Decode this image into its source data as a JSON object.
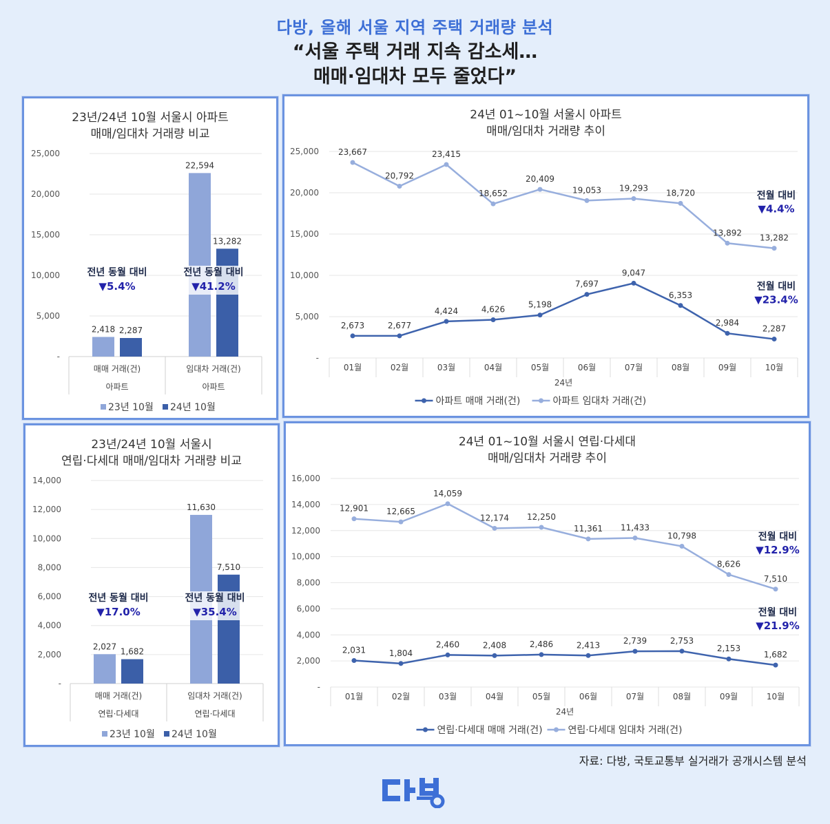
{
  "header": {
    "subtitle": "다방, 올해 서울 지역 주택 거래량 분석",
    "title_line1": "“서울 주택 거래 지속 감소세…",
    "title_line2": "매매·임대차 모두 줄었다”"
  },
  "footer": {
    "source": "자료: 다방, 국토교통부 실거래가 공개시스템 분석",
    "logo_text": "다방"
  },
  "colors": {
    "series_23": "#8fa6d9",
    "series_24": "#3b5fa8",
    "line_rent": "#97aedd",
    "line_sale": "#3e63ad",
    "highlight_text": "#2222aa",
    "accent": "#3d6fd6"
  },
  "chart_data": [
    {
      "type": "bar",
      "title_line1": "23년/24년 10월 서울시 아파트",
      "title_line2": "매매/임대차 거래량 비교",
      "categories": [
        "매매 거래(건)",
        "임대차 거래(건)"
      ],
      "group_label": "아파트",
      "series": [
        {
          "name": "23년 10월",
          "values": [
            2418,
            22594
          ]
        },
        {
          "name": "24년 10월",
          "values": [
            2287,
            13282
          ]
        }
      ],
      "data_labels": [
        [
          "2,418",
          "2,287"
        ],
        [
          "22,594",
          "13,282"
        ]
      ],
      "yticks": [
        "-",
        "5,000",
        "10,000",
        "15,000",
        "20,000",
        "25,000"
      ],
      "ylim": [
        0,
        25000
      ],
      "annotations": [
        {
          "label": "전년 동월 대비",
          "value": "▼5.4%"
        },
        {
          "label": "전년 동월 대비",
          "value": "▼41.2%"
        }
      ],
      "legend": [
        "23년 10월",
        "24년 10월"
      ]
    },
    {
      "type": "line",
      "title_line1": "24년 01~10월 서울시 아파트",
      "title_line2": "매매/임대차 거래량 추이",
      "x": [
        "01월",
        "02월",
        "03월",
        "04월",
        "05월",
        "06월",
        "07월",
        "08월",
        "09월",
        "10월"
      ],
      "xlabel": "24년",
      "series": [
        {
          "name": "아파트 매매 거래(건)",
          "values": [
            2673,
            2677,
            4424,
            4626,
            5198,
            7697,
            9047,
            6353,
            2984,
            2287
          ],
          "labels": [
            "2,673",
            "2,677",
            "4,424",
            "4,626",
            "5,198",
            "7,697",
            "9,047",
            "6,353",
            "2,984",
            "2,287"
          ]
        },
        {
          "name": "아파트 임대차 거래(건)",
          "values": [
            23667,
            20792,
            23415,
            18652,
            20409,
            19053,
            19293,
            18720,
            13892,
            13282
          ],
          "labels": [
            "23,667",
            "20,792",
            "23,415",
            "18,652",
            "20,409",
            "19,053",
            "19,293",
            "18,720",
            "13,892",
            "13,282"
          ]
        }
      ],
      "yticks": [
        "-",
        "5,000",
        "10,000",
        "15,000",
        "20,000",
        "25,000"
      ],
      "ylim": [
        0,
        25000
      ],
      "annotations": [
        {
          "label": "전월 대비",
          "value": "▼4.4%"
        },
        {
          "label": "전월 대비",
          "value": "▼23.4%"
        }
      ]
    },
    {
      "type": "bar",
      "title_line1": "23년/24년 10월 서울시",
      "title_line2": "연립·다세대 매매/임대차 거래량 비교",
      "categories": [
        "매매 거래(건)",
        "임대차 거래(건)"
      ],
      "group_label": "연립·다세대",
      "series": [
        {
          "name": "23년 10월",
          "values": [
            2027,
            11630
          ]
        },
        {
          "name": "24년 10월",
          "values": [
            1682,
            7510
          ]
        }
      ],
      "data_labels": [
        [
          "2,027",
          "1,682"
        ],
        [
          "11,630",
          "7,510"
        ]
      ],
      "yticks": [
        "-",
        "2,000",
        "4,000",
        "6,000",
        "8,000",
        "10,000",
        "12,000",
        "14,000"
      ],
      "ylim": [
        0,
        14000
      ],
      "annotations": [
        {
          "label": "전년 동월 대비",
          "value": "▼17.0%"
        },
        {
          "label": "전년 동월 대비",
          "value": "▼35.4%"
        }
      ],
      "legend": [
        "23년 10월",
        "24년 10월"
      ]
    },
    {
      "type": "line",
      "title_line1": "24년 01~10월 서울시 연립·다세대",
      "title_line2": "매매/임대차 거래량 추이",
      "x": [
        "01월",
        "02월",
        "03월",
        "04월",
        "05월",
        "06월",
        "07월",
        "08월",
        "09월",
        "10월"
      ],
      "xlabel": "24년",
      "series": [
        {
          "name": "연립·다세대 매매 거래(건)",
          "values": [
            2031,
            1804,
            2460,
            2408,
            2486,
            2413,
            2739,
            2753,
            2153,
            1682
          ],
          "labels": [
            "2,031",
            "1,804",
            "2,460",
            "2,408",
            "2,486",
            "2,413",
            "2,739",
            "2,753",
            "2,153",
            "1,682"
          ]
        },
        {
          "name": "연립·다세대 임대차 거래(건)",
          "values": [
            12901,
            12665,
            14059,
            12174,
            12250,
            11361,
            11433,
            10798,
            8626,
            7510
          ],
          "labels": [
            "12,901",
            "12,665",
            "14,059",
            "12,174",
            "12,250",
            "11,361",
            "11,433",
            "10,798",
            "8,626",
            "7,510"
          ]
        }
      ],
      "yticks": [
        "-",
        "2,000",
        "4,000",
        "6,000",
        "8,000",
        "10,000",
        "12,000",
        "14,000",
        "16,000"
      ],
      "ylim": [
        0,
        16000
      ],
      "annotations": [
        {
          "label": "전월 대비",
          "value": "▼12.9%"
        },
        {
          "label": "전월 대비",
          "value": "▼21.9%"
        }
      ]
    }
  ]
}
